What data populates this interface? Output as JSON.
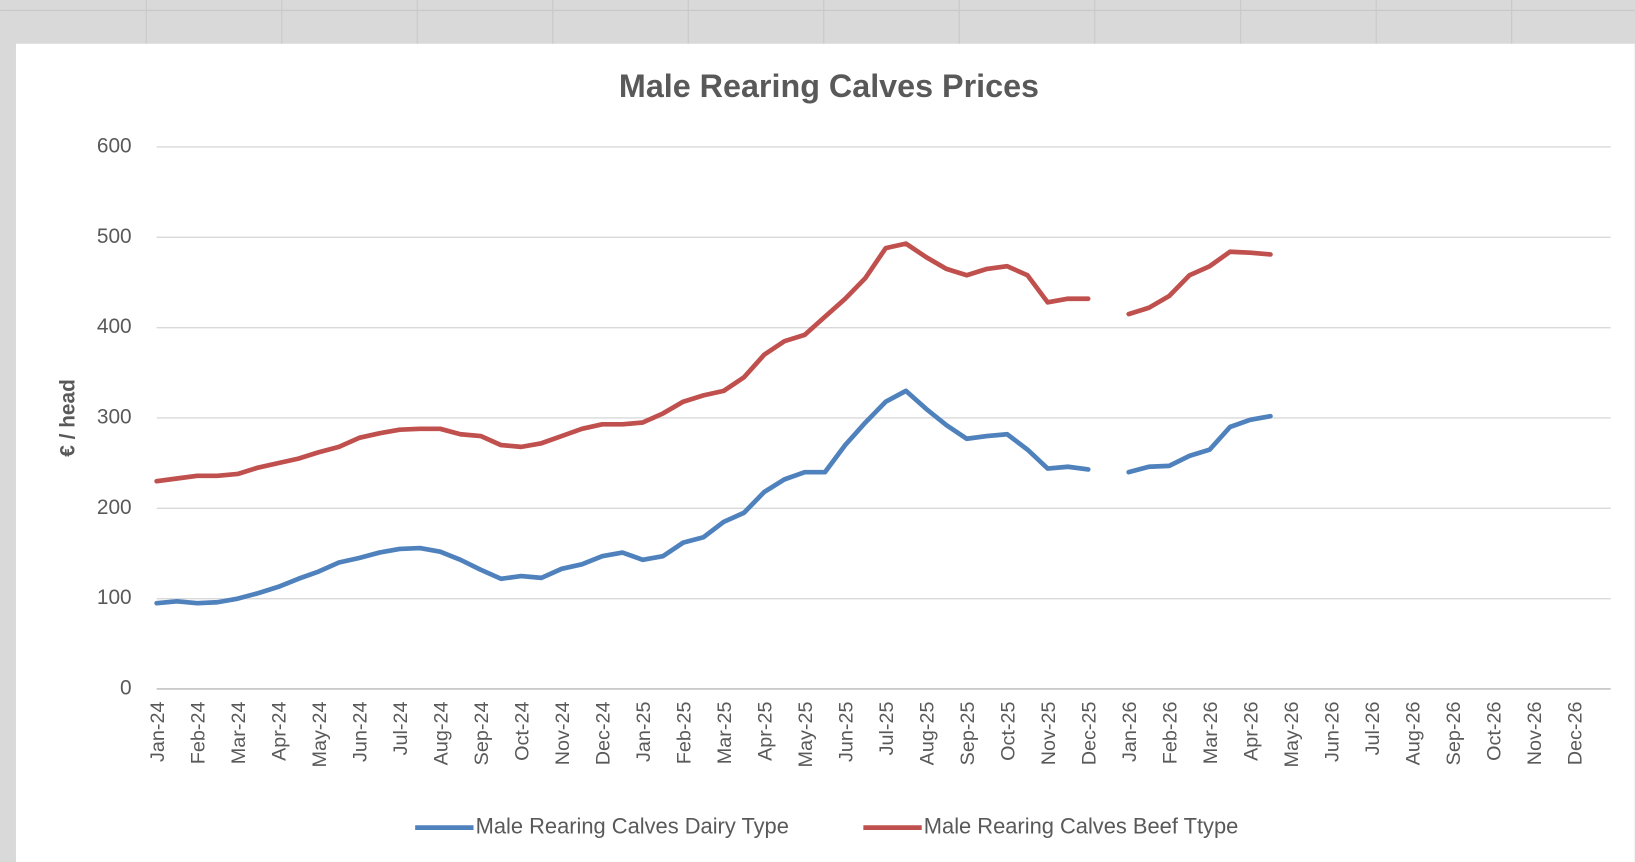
{
  "chart_data": {
    "type": "line",
    "title": "Male Rearing Calves Prices",
    "y_label": "€ / head",
    "categories": [
      "Jan-24",
      null,
      "Feb-24",
      null,
      "Mar-24",
      null,
      "Apr-24",
      null,
      "May-24",
      null,
      "Jun-24",
      null,
      "Jul-24",
      null,
      "Aug-24",
      null,
      "Sep-24",
      null,
      "Oct-24",
      null,
      "Nov-24",
      null,
      "Dec-24",
      null,
      "Jan-25",
      null,
      "Feb-25",
      null,
      "Mar-25",
      null,
      "Apr-25",
      null,
      "May-25",
      null,
      "Jun-25",
      null,
      "Jul-25",
      null,
      "Aug-25",
      null,
      "Sep-25",
      null,
      "Oct-25",
      null,
      "Nov-25",
      null,
      "Dec-25",
      null,
      "Jan-26",
      null,
      "Feb-26",
      null,
      "Mar-26",
      null,
      "Apr-26",
      null,
      "May-26",
      null,
      "Jun-26",
      null,
      "Jul-26",
      null,
      "Aug-26",
      null,
      "Sep-26",
      null,
      "Oct-26",
      null,
      "Nov-26",
      null,
      "Dec-26",
      null
    ],
    "series": [
      {
        "name": "Male Rearing Calves Dairy Type",
        "color": "#4f81bd",
        "values": [
          95,
          97,
          95,
          96,
          100,
          106,
          113,
          122,
          130,
          140,
          145,
          151,
          155,
          156,
          152,
          143,
          132,
          122,
          125,
          123,
          133,
          138,
          147,
          151,
          143,
          147,
          162,
          168,
          185,
          195,
          218,
          232,
          240,
          240,
          270,
          295,
          318,
          330,
          310,
          292,
          277,
          280,
          282,
          265,
          244,
          246,
          243,
          null,
          240,
          246,
          247,
          258,
          265,
          290,
          298,
          302,
          null,
          null,
          null,
          null,
          null,
          null,
          null,
          null,
          null,
          null,
          null,
          null,
          null,
          null,
          null,
          null
        ]
      },
      {
        "name": "Male Rearing Calves Beef Ttype",
        "color": "#c0504d",
        "values": [
          230,
          233,
          236,
          236,
          238,
          245,
          250,
          255,
          262,
          268,
          278,
          283,
          287,
          288,
          288,
          282,
          280,
          270,
          268,
          272,
          280,
          288,
          293,
          293,
          295,
          305,
          318,
          325,
          330,
          345,
          370,
          385,
          392,
          412,
          432,
          455,
          488,
          493,
          478,
          465,
          458,
          465,
          468,
          458,
          428,
          432,
          432,
          null,
          415,
          422,
          435,
          458,
          468,
          484,
          483,
          481,
          null,
          null,
          null,
          null,
          null,
          null,
          null,
          null,
          null,
          null,
          null,
          null,
          null,
          null,
          null,
          null
        ]
      }
    ],
    "ylim": [
      0,
      600
    ],
    "yticks": [
      0,
      100,
      200,
      300,
      400,
      500,
      600
    ],
    "grid": true,
    "legend": "bottom"
  }
}
